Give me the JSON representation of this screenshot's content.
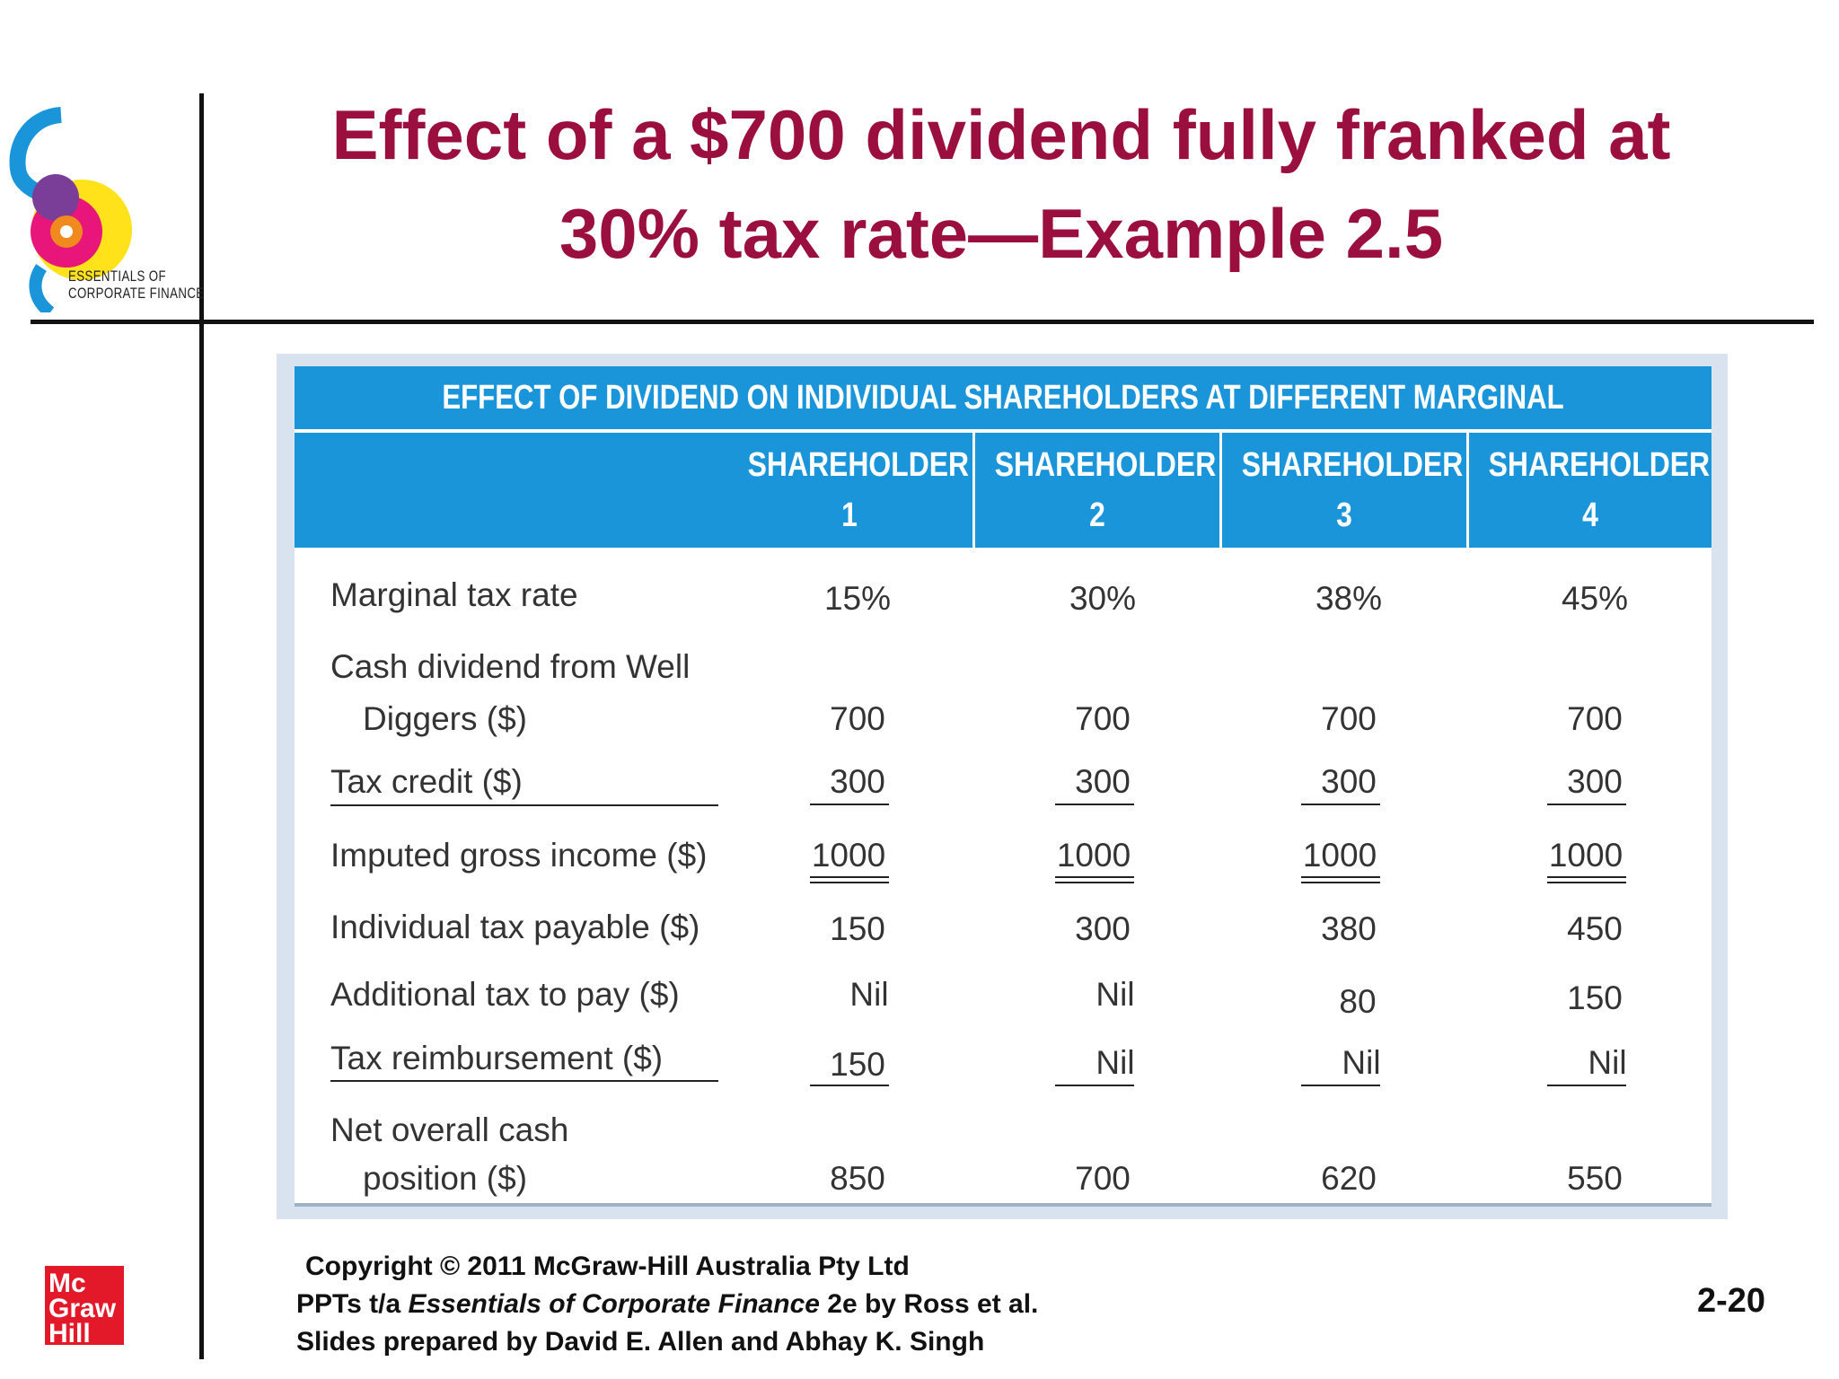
{
  "title_line1": "Effect of a $700 dividend fully franked at",
  "title_line2": "30% tax rate—Example 2.5",
  "logo": {
    "line1": "ESSENTIALS OF",
    "line2": "CORPORATE FINANCE"
  },
  "table": {
    "banner": "EFFECT OF DIVIDEND ON INDIVIDUAL SHAREHOLDERS AT DIFFERENT MARGINAL TAX RATES",
    "columns": [
      {
        "word": "SHAREHOLDER",
        "num": "1"
      },
      {
        "word": "SHAREHOLDER",
        "num": "2"
      },
      {
        "word": "SHAREHOLDER",
        "num": "3"
      },
      {
        "word": "SHAREHOLDER",
        "num": "4"
      }
    ],
    "rows": [
      {
        "label": "Marginal tax rate",
        "values": [
          "15%",
          "30%",
          "38%",
          "45%"
        ]
      },
      {
        "label": "Cash dividend from Well",
        "label2": "Diggers ($)",
        "values": [
          "700",
          "700",
          "700",
          "700"
        ]
      },
      {
        "label": "Tax credit ($)",
        "values": [
          "300",
          "300",
          "300",
          "300"
        ]
      },
      {
        "label": "Imputed gross income ($)",
        "values": [
          "1000",
          "1000",
          "1000",
          "1000"
        ]
      },
      {
        "label": "Individual tax payable ($)",
        "values": [
          "150",
          "300",
          "380",
          "450"
        ]
      },
      {
        "label": "Additional tax to pay ($)",
        "values": [
          "Nil",
          "Nil",
          "80",
          "150"
        ]
      },
      {
        "label": "Tax reimbursement ($)",
        "values": [
          "150",
          "Nil",
          "Nil",
          "Nil"
        ]
      },
      {
        "label": "Net overall cash",
        "label2": "position ($)",
        "values": [
          "850",
          "700",
          "620",
          "550"
        ]
      }
    ]
  },
  "footer": {
    "line1": "Copyright © 2011 McGraw-Hill Australia Pty Ltd",
    "line2_pre": "PPTs t/a ",
    "line2_ital": "Essentials of Corporate Finance",
    "line2_post": " 2e by Ross et al.",
    "line3": "Slides prepared by David E. Allen and Abhay K. Singh"
  },
  "page_number": "2-20",
  "publisher_logo": {
    "l1": "Mc",
    "l2": "Graw",
    "l3": "Hill"
  },
  "colors": {
    "title": "#9b0f3f",
    "table_header": "#1b95da",
    "publisher_red": "#e3192a"
  }
}
